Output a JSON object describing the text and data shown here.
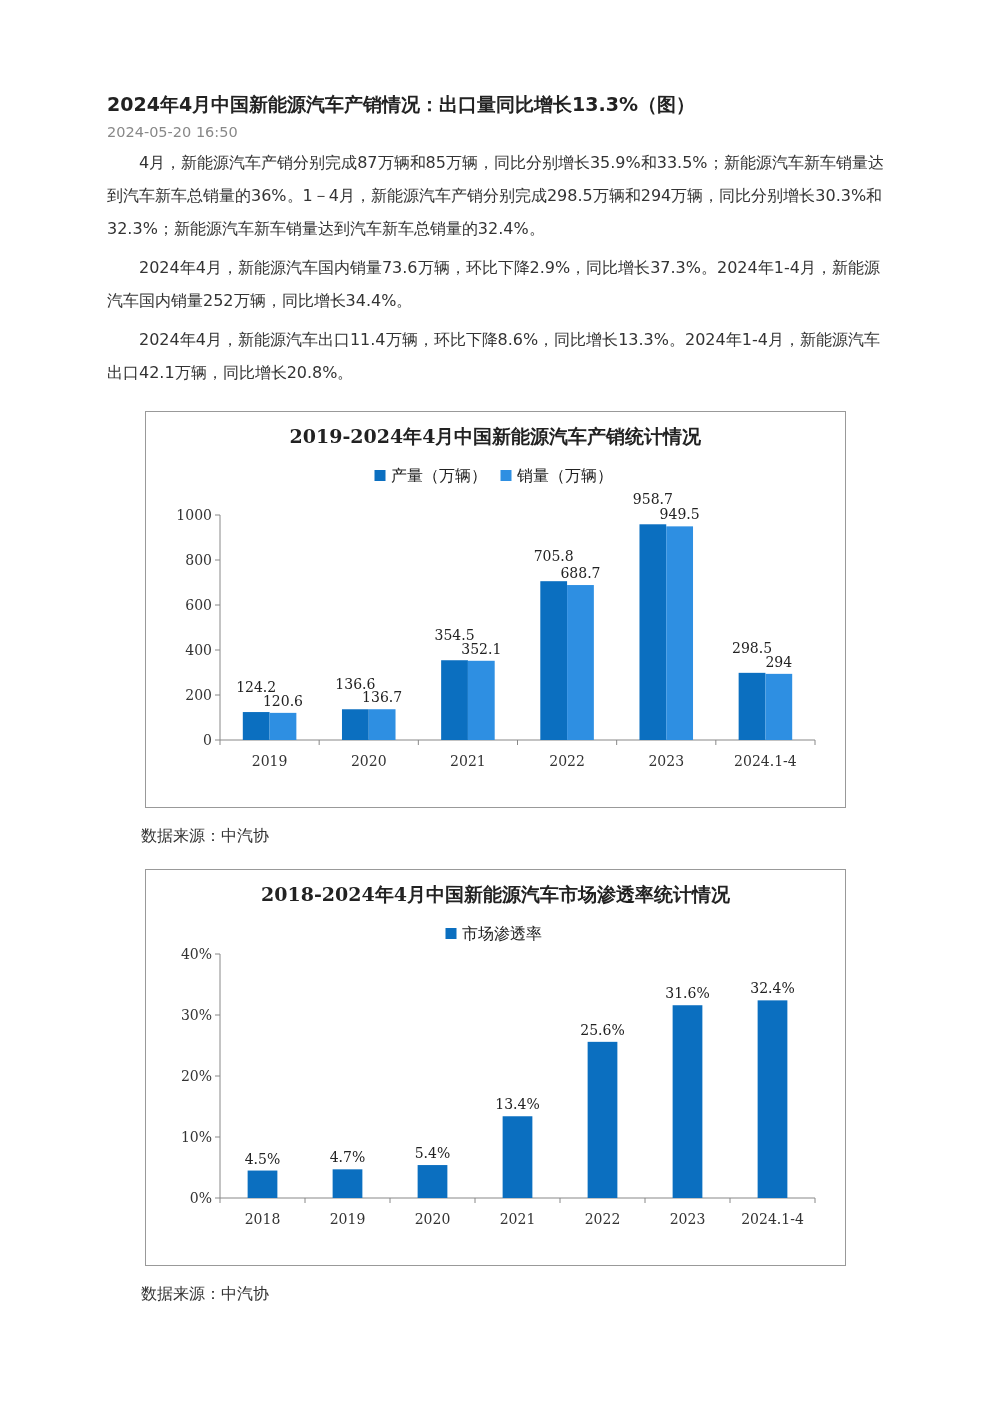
{
  "chart_data": [
    {
      "type": "other",
      "title": "2024年4月中国新能源汽车产销情况：出口量同比增长13.3%（图）",
      "subtitle": "2024-05-20 16:50",
      "annotations": [
        "4月，新能源汽车产销分别完成87万辆和85万辆，同比分别增长35.9%和33.5%；新能源汽车新车销量达到汽车新车总销量的36%。1－4月，新能源汽车产销分别完成298.5万辆和294万辆，同比分别增长30.3%和32.3%；新能源汽车新车销量达到汽车新车总销量的32.4%。",
        "2024年4月，新能源汽车国内销量73.6万辆，环比下降2.9%，同比增长37.3%。2024年1-4月，新能源汽车国内销量252万辆，同比增长34.4%。",
        "2024年4月，新能源汽车出口11.4万辆，环比下降8.6%，同比增长13.3%。2024年1-4月，新能源汽车出口42.1万辆，同比增长20.8%。"
      ]
    },
    {
      "type": "bar",
      "title": "2019-2024年4月中国新能源汽车产销统计情况",
      "categories": [
        "2019",
        "2020",
        "2021",
        "2022",
        "2023",
        "2024.1-4"
      ],
      "series": [
        {
          "name": "产量（万辆）",
          "color": "#0b6fc0",
          "values": [
            124.2,
            136.6,
            354.5,
            705.8,
            958.7,
            298.5
          ]
        },
        {
          "name": "销量（万辆）",
          "color": "#2e8fe2",
          "values": [
            120.6,
            136.7,
            352.1,
            688.7,
            949.5,
            294
          ]
        }
      ],
      "ylim": [
        0,
        1000
      ],
      "yticks": [
        0,
        200,
        400,
        600,
        800,
        1000
      ],
      "data_labels": true,
      "legend": "top",
      "annotations": [
        "数据来源：中汽协"
      ]
    },
    {
      "type": "bar",
      "title": "2018-2024年4月中国新能源汽车市场渗透率统计情况",
      "categories": [
        "2018",
        "2019",
        "2020",
        "2021",
        "2022",
        "2023",
        "2024.1-4"
      ],
      "series": [
        {
          "name": "市场渗透率",
          "color": "#0b6fc0",
          "values": [
            4.5,
            4.7,
            5.4,
            13.4,
            25.6,
            31.6,
            32.4
          ],
          "value_labels": [
            "4.5%",
            "4.7%",
            "5.4%",
            "13.4%",
            "25.6%",
            "31.6%",
            "32.4%"
          ]
        }
      ],
      "ylim": [
        0,
        40
      ],
      "yticks": [
        {
          "value": 0,
          "label": "0%"
        },
        {
          "value": 10,
          "label": "10%"
        },
        {
          "value": 20,
          "label": "20%"
        },
        {
          "value": 30,
          "label": "30%"
        },
        {
          "value": 40,
          "label": "40%"
        }
      ],
      "legend": "top",
      "annotations": [
        "数据来源：中汽协"
      ]
    }
  ]
}
